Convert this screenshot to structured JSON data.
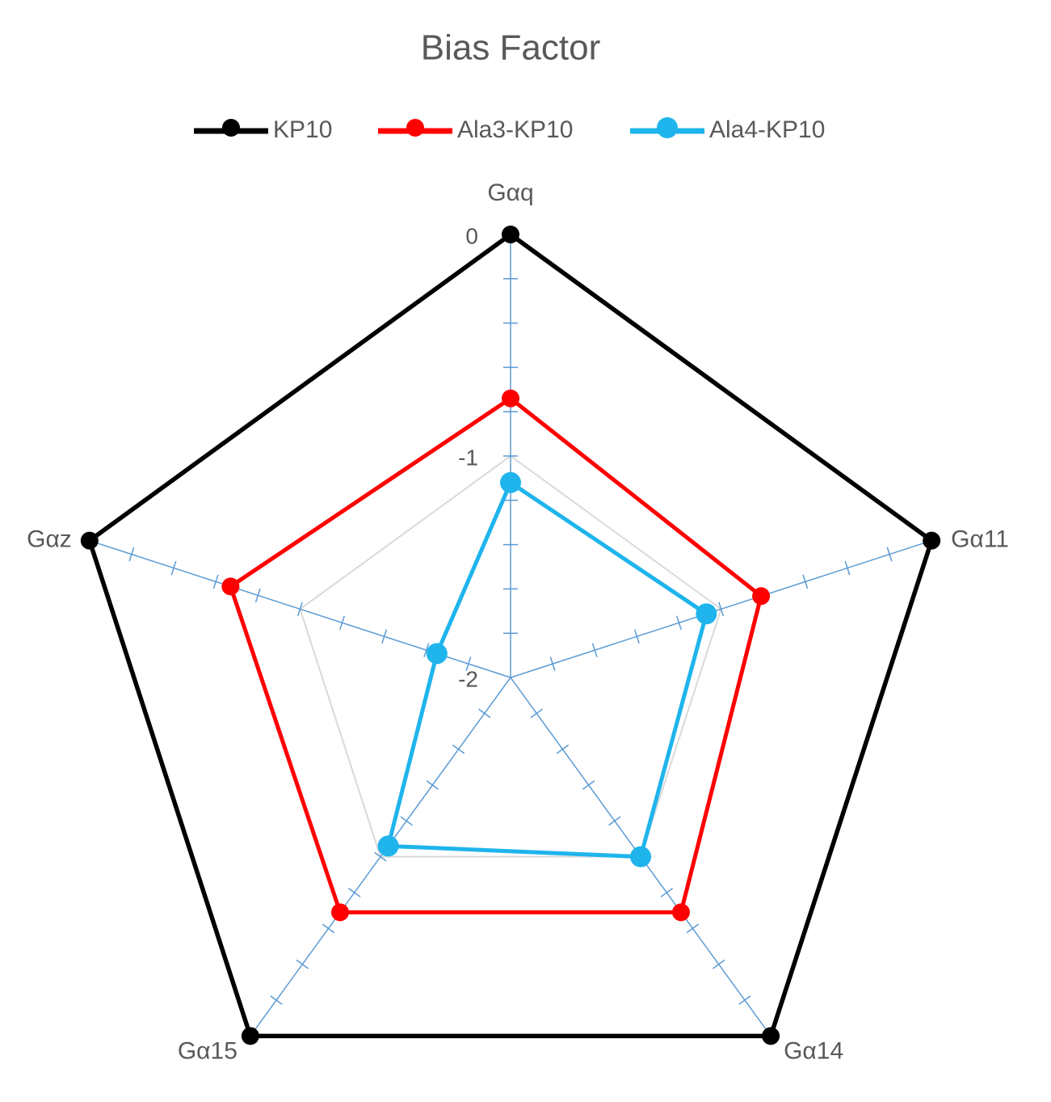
{
  "chart_data": {
    "type": "radar",
    "title": "Bias Factor",
    "categories": [
      "Gαq",
      "Gα11",
      "Gα14",
      "Gα15",
      "Gαz"
    ],
    "series": [
      {
        "name": "KP10",
        "color": "#000000",
        "values": [
          0,
          0,
          0,
          0,
          0
        ]
      },
      {
        "name": "Ala3-KP10",
        "color": "#ff0000",
        "values": [
          -0.74,
          -0.81,
          -0.69,
          -0.69,
          -0.67
        ]
      },
      {
        "name": "Ala4-KP10",
        "color": "#1fb4ec",
        "values": [
          -1.12,
          -1.07,
          -1.0,
          -1.06,
          -1.65
        ]
      }
    ],
    "ylim": [
      -2,
      0
    ],
    "yticks": [
      -2,
      -1,
      0
    ],
    "grid": true,
    "legend": "top"
  }
}
